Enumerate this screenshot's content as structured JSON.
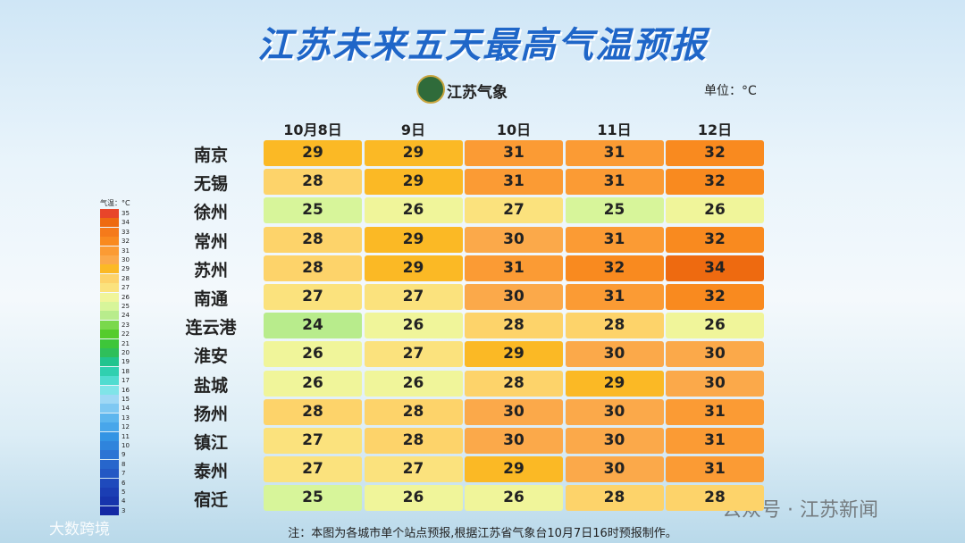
{
  "header": {
    "title": "江苏未来五天最高气温预报",
    "logo": "江苏气象",
    "unit": "单位：°C"
  },
  "table": {
    "columns": [
      "10月8日",
      "9日",
      "10日",
      "11日",
      "12日"
    ],
    "rows": [
      {
        "city": "南京",
        "values": [
          29,
          29,
          31,
          31,
          32
        ]
      },
      {
        "city": "无锡",
        "values": [
          28,
          29,
          31,
          31,
          32
        ]
      },
      {
        "city": "徐州",
        "values": [
          25,
          26,
          27,
          25,
          26
        ]
      },
      {
        "city": "常州",
        "values": [
          28,
          29,
          30,
          31,
          32
        ]
      },
      {
        "city": "苏州",
        "values": [
          28,
          29,
          31,
          32,
          34
        ]
      },
      {
        "city": "南通",
        "values": [
          27,
          27,
          30,
          31,
          32
        ]
      },
      {
        "city": "连云港",
        "values": [
          24,
          26,
          28,
          28,
          26
        ]
      },
      {
        "city": "淮安",
        "values": [
          26,
          27,
          29,
          30,
          30
        ]
      },
      {
        "city": "盐城",
        "values": [
          26,
          26,
          28,
          29,
          30
        ]
      },
      {
        "city": "扬州",
        "values": [
          28,
          28,
          30,
          30,
          31
        ]
      },
      {
        "city": "镇江",
        "values": [
          27,
          28,
          30,
          30,
          31
        ]
      },
      {
        "city": "泰州",
        "values": [
          27,
          27,
          29,
          30,
          31
        ]
      },
      {
        "city": "宿迁",
        "values": [
          25,
          26,
          26,
          28,
          28
        ]
      }
    ]
  },
  "legend": {
    "title": "气温：°C",
    "items": [
      {
        "label": 35,
        "color": "#e8452a"
      },
      {
        "label": 34,
        "color": "#ee6a10"
      },
      {
        "label": 33,
        "color": "#f57a1a"
      },
      {
        "label": 32,
        "color": "#f98a1f"
      },
      {
        "label": 31,
        "color": "#fb9b34"
      },
      {
        "label": 30,
        "color": "#fba94a"
      },
      {
        "label": 29,
        "color": "#fbb925"
      },
      {
        "label": 28,
        "color": "#fdd36a"
      },
      {
        "label": 27,
        "color": "#fbe27d"
      },
      {
        "label": 26,
        "color": "#f0f59a"
      },
      {
        "label": 25,
        "color": "#d7f59a"
      },
      {
        "label": 24,
        "color": "#b8ec8c"
      },
      {
        "label": 23,
        "color": "#7ad84c"
      },
      {
        "label": 22,
        "color": "#55cc2c"
      },
      {
        "label": 21,
        "color": "#3ec63a"
      },
      {
        "label": 20,
        "color": "#2fbf5a"
      },
      {
        "label": 19,
        "color": "#22c48e"
      },
      {
        "label": 18,
        "color": "#30d0b0"
      },
      {
        "label": 17,
        "color": "#50dcd0"
      },
      {
        "label": 16,
        "color": "#80e4e8"
      },
      {
        "label": 15,
        "color": "#9fd8f5"
      },
      {
        "label": 14,
        "color": "#7ec8f2"
      },
      {
        "label": 13,
        "color": "#5db6ee"
      },
      {
        "label": 12,
        "color": "#48a6ea"
      },
      {
        "label": 11,
        "color": "#3394e4"
      },
      {
        "label": 10,
        "color": "#2f84dc"
      },
      {
        "label": 9,
        "color": "#2b74d4"
      },
      {
        "label": 8,
        "color": "#2766cc"
      },
      {
        "label": 7,
        "color": "#2358c4"
      },
      {
        "label": 6,
        "color": "#1f4abc"
      },
      {
        "label": 5,
        "color": "#1b3eb4"
      },
      {
        "label": 4,
        "color": "#1734ac"
      },
      {
        "label": 3,
        "color": "#1428a4"
      }
    ]
  },
  "footer": {
    "note": "注：本图为各城市单个站点预报,根据江苏省气象台10月7日16时预报制作。",
    "watermark": "公众号 · 江苏新闻",
    "watermark2": "大数跨境"
  }
}
